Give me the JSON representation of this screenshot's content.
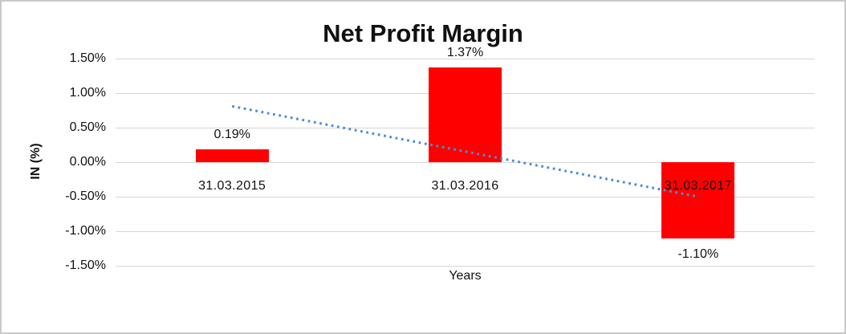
{
  "chart_data": {
    "type": "bar",
    "title": "Net Profit Margin",
    "xlabel": "Years",
    "ylabel": "IN (%)",
    "categories": [
      "31.03.2015",
      "31.03.2016",
      "31.03.2017"
    ],
    "values": [
      0.19,
      1.37,
      -1.1
    ],
    "value_labels": [
      "0.19%",
      "1.37%",
      "-1.10%"
    ],
    "y_ticks": [
      1.5,
      1.0,
      0.5,
      0.0,
      -0.5,
      -1.0,
      -1.5
    ],
    "y_tick_labels": [
      "1.50%",
      "1.00%",
      "0.50%",
      "0.00%",
      "-0.50%",
      "-1.00%",
      "-1.50%"
    ],
    "ylim": [
      -1.5,
      1.5
    ],
    "grid": "horizontal",
    "legend": "none",
    "bar_color": "#FF0000",
    "gridline_color": "#d6d6d6",
    "trendline": {
      "style": "dotted",
      "color": "#4E8CD5",
      "start_value": 0.81,
      "end_value": -0.5
    }
  }
}
